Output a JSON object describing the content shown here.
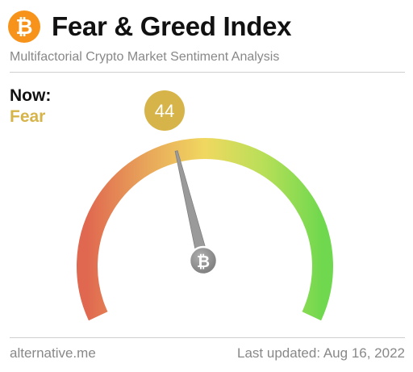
{
  "header": {
    "logo_icon": "bitcoin-icon",
    "logo_glyph": "₿",
    "title": "Fear & Greed Index"
  },
  "subtitle": "Multifactorial Crypto Market Sentiment Analysis",
  "now": {
    "label": "Now:",
    "classification": "Fear",
    "classification_color": "#d6b44a"
  },
  "gauge": {
    "value": 44,
    "value_display": "44",
    "min": 0,
    "max": 100,
    "badge_color": "#d6b44a",
    "center_icon": "bitcoin-icon",
    "center_glyph": "₿",
    "colors": {
      "fear": "#e06850",
      "neutral": "#f0d15a",
      "greed": "#6fd84e"
    }
  },
  "footer": {
    "source": "alternative.me",
    "updated_label": "Last updated:",
    "updated_date": "Aug 16, 2022"
  }
}
